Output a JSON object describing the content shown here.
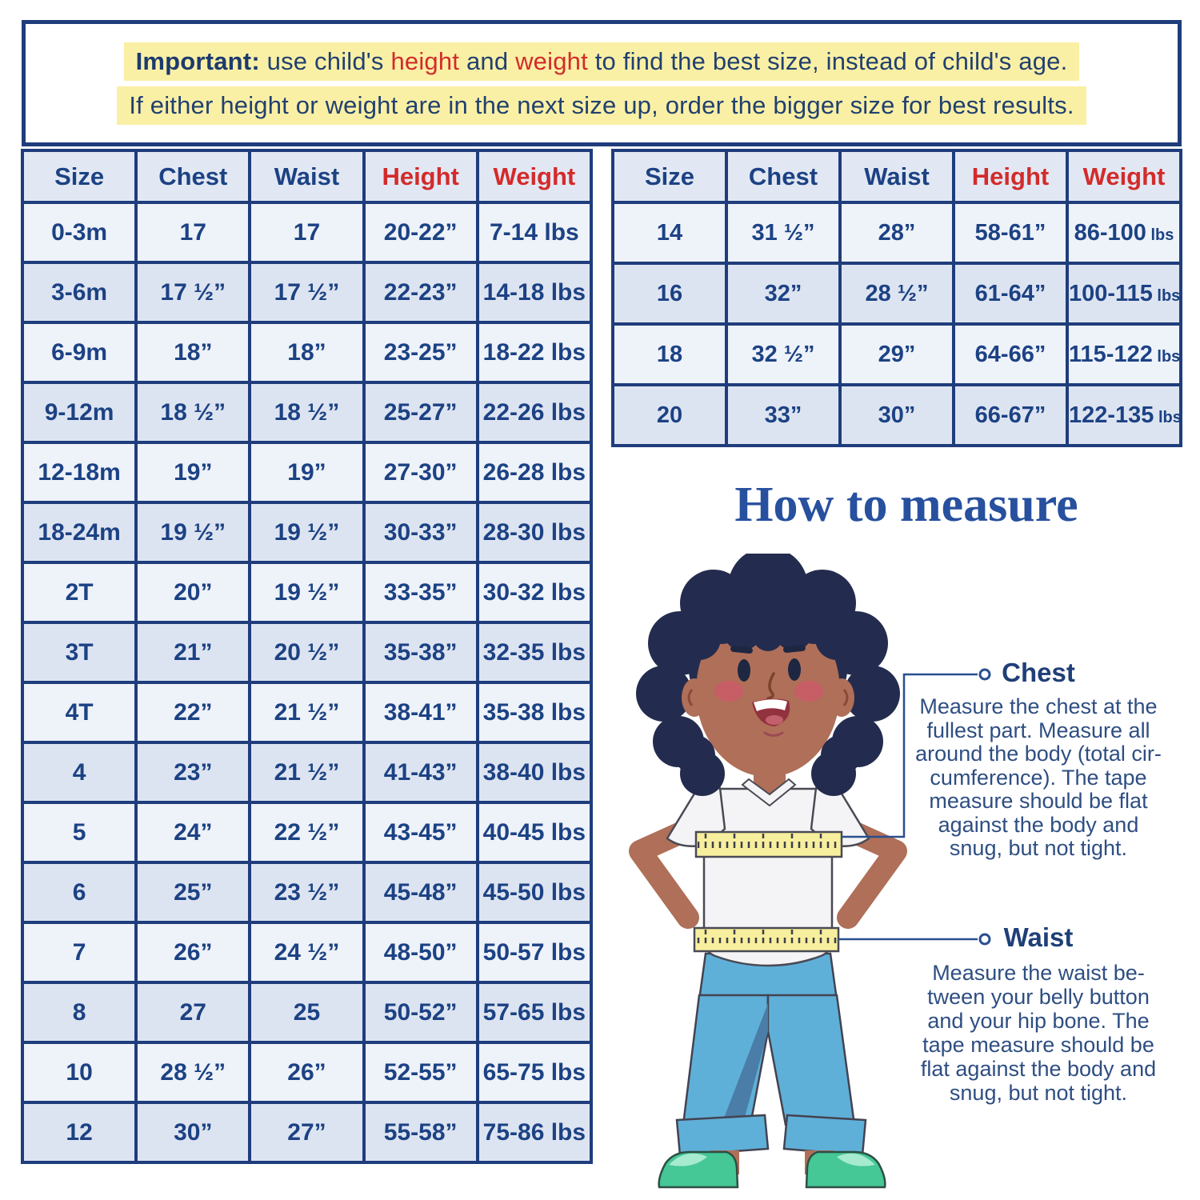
{
  "note": {
    "line1_bold": "Important:",
    "line1_part1": " use child's ",
    "line1_red1": "height",
    "line1_part2": " and ",
    "line1_red2": "weight",
    "line1_part3": " to find the best size, instead of child's age.",
    "line2": "If either height or weight are in the next size up, order the bigger size for best results."
  },
  "tables": {
    "headers": [
      "Size",
      "Chest",
      "Waist",
      "Height",
      "Weight"
    ],
    "red_headers": [
      "Height",
      "Weight"
    ],
    "left_rows": [
      [
        "0-3m",
        "17",
        "17",
        "20-22”",
        "7-14 lbs"
      ],
      [
        "3-6m",
        "17 ½”",
        "17 ½”",
        "22-23”",
        "14-18 lbs"
      ],
      [
        "6-9m",
        "18”",
        "18”",
        "23-25”",
        "18-22 lbs"
      ],
      [
        "9-12m",
        "18 ½”",
        "18 ½”",
        "25-27”",
        "22-26 lbs"
      ],
      [
        "12-18m",
        "19”",
        "19”",
        "27-30”",
        "26-28 lbs"
      ],
      [
        "18-24m",
        "19 ½”",
        "19 ½”",
        "30-33”",
        "28-30 lbs"
      ],
      [
        "2T",
        "20”",
        "19 ½”",
        "33-35”",
        "30-32 lbs"
      ],
      [
        "3T",
        "21”",
        "20 ½”",
        "35-38”",
        "32-35 lbs"
      ],
      [
        "4T",
        "22”",
        "21 ½”",
        "38-41”",
        "35-38 lbs"
      ],
      [
        "4",
        "23”",
        "21 ½”",
        "41-43”",
        "38-40 lbs"
      ],
      [
        "5",
        "24”",
        "22 ½”",
        "43-45”",
        "40-45 lbs"
      ],
      [
        "6",
        "25”",
        "23 ½”",
        "45-48”",
        "45-50 lbs"
      ],
      [
        "7",
        "26”",
        "24 ½”",
        "48-50”",
        "50-57 lbs"
      ],
      [
        "8",
        "27",
        "25",
        "50-52”",
        "57-65 lbs"
      ],
      [
        "10",
        "28 ½”",
        "26”",
        "52-55”",
        "65-75 lbs"
      ],
      [
        "12",
        "30”",
        "27”",
        "55-58”",
        "75-86 lbs"
      ]
    ],
    "right_rows": [
      [
        "14",
        "31 ½”",
        "28”",
        "58-61”",
        {
          "n": "86-100",
          "u": "lbs"
        }
      ],
      [
        "16",
        "32”",
        "28 ½”",
        "61-64”",
        {
          "n": "100-115",
          "u": "lbs"
        }
      ],
      [
        "18",
        "32 ½”",
        "29”",
        "64-66”",
        {
          "n": "115-122",
          "u": "lbs"
        }
      ],
      [
        "20",
        "33”",
        "30”",
        "66-67”",
        {
          "n": "122-135",
          "u": "lbs"
        }
      ]
    ]
  },
  "measure": {
    "title": "How to measure",
    "chest_label": "Chest",
    "chest_text": "Measure the chest at the\nfullest part. Measure all\naround the body (total cir-\ncumference). The tape\nmeasure should be flat\nagainst the body and\nsnug, but not tight.",
    "waist_label": "Waist",
    "waist_text": "Measure the waist be-\ntween your belly button\nand your hip bone. The\ntape measure should be\nflat against the body and\nsnug, but not tight."
  },
  "colors": {
    "navy_border": "#1f3d7c",
    "navy_text": "#1c4284",
    "red": "#d32b2b",
    "hl": "#faf0a5",
    "header_bg": "#e2e8f3",
    "row_light": "#eef2f9",
    "row_dark": "#dde4f1",
    "title_blue": "#27509e",
    "body_text": "#2e4e82",
    "connector": "#2a4f8f",
    "skin": "#b06f58",
    "hair": "#232c4e",
    "shirt": "#f4f4f6",
    "pants": "#5fb0d8",
    "pants_shade": "#4a7da8",
    "shoes": "#45c796",
    "shoes_light": "#a6ead0",
    "tape": "#f7ef9e",
    "ink": "#4a4a55"
  }
}
